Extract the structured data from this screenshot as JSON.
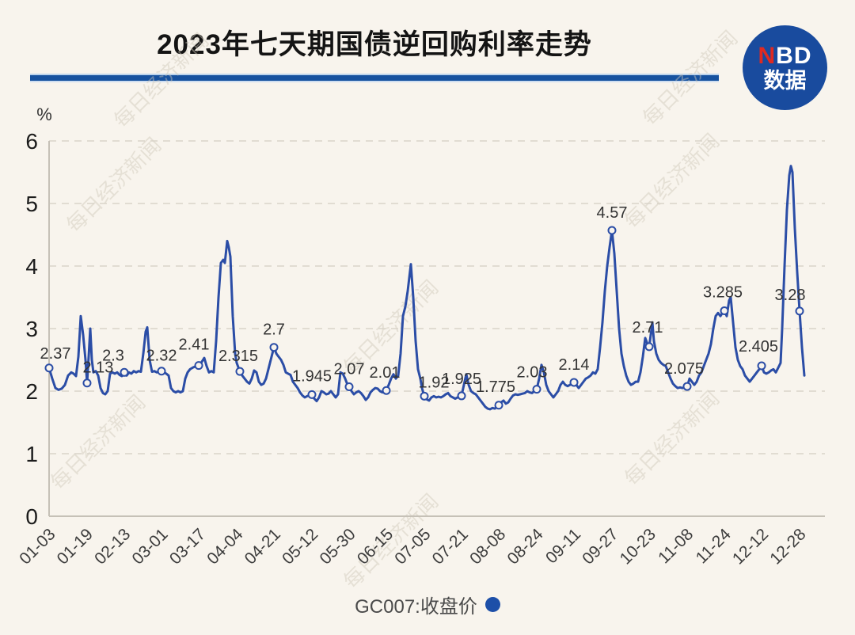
{
  "header": {
    "title": "2023年七天期国债逆回购利率走势",
    "logo": {
      "n": "N",
      "bd": "BD",
      "caption": "数据"
    }
  },
  "watermark": {
    "text": "每日经济新闻"
  },
  "legend": {
    "label": "GC007:收盘价"
  },
  "colors": {
    "background": "#f8f4ed",
    "line": "#2b4da6",
    "marker_fill": "#f8f4ed",
    "grid": "#d9d4ca",
    "axis": "#c6c1b7",
    "divider_blue": "#17529f",
    "logo_blue": "#194b9e",
    "logo_red": "#e02a21",
    "legend_dot": "#1d4fa8",
    "watermark": "#cfc8ba",
    "tick_text": "#3c3c3c",
    "label_text": "#333333"
  },
  "chart_data": {
    "type": "line",
    "title": "2023年七天期国债逆回购利率走势",
    "series_name": "GC007:收盘价",
    "xlabel": "",
    "ylabel": "%",
    "ylim": [
      0,
      6
    ],
    "yticks": [
      0,
      1,
      2,
      3,
      4,
      5,
      6
    ],
    "grid": "horizontal dashed, y=1..6",
    "legend_position": "bottom center",
    "x_axis_type": "trading days 2023, evenly spaced ticks",
    "x_tick_labels": [
      "01-03",
      "01-19",
      "02-13",
      "03-01",
      "03-17",
      "04-04",
      "04-21",
      "05-12",
      "05-30",
      "06-15",
      "07-05",
      "07-21",
      "08-08",
      "08-24",
      "09-11",
      "09-27",
      "10-23",
      "11-08",
      "11-24",
      "12-12",
      "12-28"
    ],
    "labeled_points": [
      {
        "date": "01-03",
        "x": 0.0,
        "value": 2.37,
        "label": "2.37"
      },
      {
        "date": "01-19",
        "x": 0.0506,
        "value": 2.13,
        "label": "2.13"
      },
      {
        "date": "02-13",
        "x": 0.1002,
        "value": 2.3,
        "label": "2.3"
      },
      {
        "date": "03-01",
        "x": 0.1498,
        "value": 2.32,
        "label": "2.32"
      },
      {
        "date": "03-17",
        "x": 0.1994,
        "value": 2.41,
        "label": "2.41"
      },
      {
        "date": "04-04",
        "x": 0.2542,
        "value": 2.315,
        "label": "2.315"
      },
      {
        "date": "04-21",
        "x": 0.2996,
        "value": 2.7,
        "label": "2.7"
      },
      {
        "date": "05-12",
        "x": 0.3502,
        "value": 1.945,
        "label": "1.945"
      },
      {
        "date": "05-30",
        "x": 0.3998,
        "value": 2.07,
        "label": "2.07"
      },
      {
        "date": "06-15",
        "x": 0.4494,
        "value": 2.01,
        "label": "2.01"
      },
      {
        "date": "07-05",
        "x": 0.5,
        "value": 1.92,
        "label": "1.92"
      },
      {
        "date": "07-21",
        "x": 0.5496,
        "value": 1.925,
        "label": "1.925"
      },
      {
        "date": "08-08",
        "x": 0.5992,
        "value": 1.775,
        "label": "1.775"
      },
      {
        "date": "08-24",
        "x": 0.6498,
        "value": 2.03,
        "label": "2.03"
      },
      {
        "date": "09-11",
        "x": 0.6994,
        "value": 2.14,
        "label": "2.14"
      },
      {
        "date": "09-27",
        "x": 0.75,
        "value": 4.57,
        "label": "4.57"
      },
      {
        "date": "10-23",
        "x": 0.7996,
        "value": 2.71,
        "label": "2.71"
      },
      {
        "date": "11-08",
        "x": 0.8502,
        "value": 2.075,
        "label": "2.075"
      },
      {
        "date": "11-24",
        "x": 0.8998,
        "value": 3.285,
        "label": "3.285"
      },
      {
        "date": "12-12",
        "x": 0.9494,
        "value": 2.405,
        "label": "2.405"
      },
      {
        "date": "12-28",
        "x": 1.0,
        "value": 3.28,
        "label": "3.28"
      }
    ],
    "line_points": [
      [
        0.0,
        2.37
      ],
      [
        0.0042,
        2.2
      ],
      [
        0.0084,
        2.05
      ],
      [
        0.0127,
        2.02
      ],
      [
        0.0169,
        2.04
      ],
      [
        0.0211,
        2.1
      ],
      [
        0.0253,
        2.25
      ],
      [
        0.0295,
        2.3
      ],
      [
        0.0327,
        2.28
      ],
      [
        0.0359,
        2.24
      ],
      [
        0.039,
        2.55
      ],
      [
        0.0422,
        3.2
      ],
      [
        0.0454,
        2.9
      ],
      [
        0.0485,
        2.5
      ],
      [
        0.0506,
        2.13
      ],
      [
        0.0527,
        2.55
      ],
      [
        0.0549,
        3.0
      ],
      [
        0.057,
        2.5
      ],
      [
        0.0591,
        2.3
      ],
      [
        0.0622,
        2.32
      ],
      [
        0.0654,
        2.25
      ],
      [
        0.0686,
        2.05
      ],
      [
        0.0717,
        1.97
      ],
      [
        0.0749,
        1.95
      ],
      [
        0.0781,
        2.0
      ],
      [
        0.0812,
        2.28
      ],
      [
        0.0844,
        2.3
      ],
      [
        0.0876,
        2.28
      ],
      [
        0.0907,
        2.3
      ],
      [
        0.0939,
        2.26
      ],
      [
        0.097,
        2.24
      ],
      [
        0.1002,
        2.3
      ],
      [
        0.1034,
        2.25
      ],
      [
        0.1065,
        2.3
      ],
      [
        0.1097,
        2.28
      ],
      [
        0.1129,
        2.32
      ],
      [
        0.116,
        2.3
      ],
      [
        0.1192,
        2.32
      ],
      [
        0.1224,
        2.31
      ],
      [
        0.1255,
        2.6
      ],
      [
        0.1287,
        2.95
      ],
      [
        0.1308,
        3.02
      ],
      [
        0.134,
        2.5
      ],
      [
        0.1371,
        2.31
      ],
      [
        0.1403,
        2.32
      ],
      [
        0.1435,
        2.3
      ],
      [
        0.1466,
        2.31
      ],
      [
        0.1498,
        2.32
      ],
      [
        0.153,
        2.3
      ],
      [
        0.1561,
        2.28
      ],
      [
        0.1593,
        2.25
      ],
      [
        0.1624,
        2.05
      ],
      [
        0.1656,
        2.0
      ],
      [
        0.1688,
        1.98
      ],
      [
        0.1719,
        2.0
      ],
      [
        0.1751,
        1.98
      ],
      [
        0.1783,
        2.0
      ],
      [
        0.1814,
        2.2
      ],
      [
        0.1846,
        2.3
      ],
      [
        0.1878,
        2.35
      ],
      [
        0.192,
        2.38
      ],
      [
        0.1962,
        2.4
      ],
      [
        0.1994,
        2.41
      ],
      [
        0.2025,
        2.45
      ],
      [
        0.2068,
        2.53
      ],
      [
        0.2099,
        2.4
      ],
      [
        0.2131,
        2.3
      ],
      [
        0.2162,
        2.32
      ],
      [
        0.2194,
        2.3
      ],
      [
        0.2226,
        2.8
      ],
      [
        0.2257,
        3.5
      ],
      [
        0.2289,
        4.05
      ],
      [
        0.2321,
        4.1
      ],
      [
        0.2342,
        4.05
      ],
      [
        0.2373,
        4.4
      ],
      [
        0.2395,
        4.3
      ],
      [
        0.2416,
        4.15
      ],
      [
        0.2447,
        3.2
      ],
      [
        0.2479,
        2.6
      ],
      [
        0.25,
        2.45
      ],
      [
        0.2542,
        2.315
      ],
      [
        0.2574,
        2.25
      ],
      [
        0.2606,
        2.2
      ],
      [
        0.2637,
        2.15
      ],
      [
        0.2669,
        2.12
      ],
      [
        0.27,
        2.2
      ],
      [
        0.2732,
        2.33
      ],
      [
        0.2764,
        2.3
      ],
      [
        0.2795,
        2.15
      ],
      [
        0.2827,
        2.1
      ],
      [
        0.2859,
        2.12
      ],
      [
        0.289,
        2.2
      ],
      [
        0.2922,
        2.35
      ],
      [
        0.2954,
        2.5
      ],
      [
        0.2996,
        2.7
      ],
      [
        0.3028,
        2.6
      ],
      [
        0.3059,
        2.55
      ],
      [
        0.3091,
        2.5
      ],
      [
        0.3122,
        2.42
      ],
      [
        0.3154,
        2.3
      ],
      [
        0.3186,
        2.28
      ],
      [
        0.3217,
        2.26
      ],
      [
        0.3249,
        2.15
      ],
      [
        0.3281,
        2.1
      ],
      [
        0.3312,
        2.05
      ],
      [
        0.3344,
        1.98
      ],
      [
        0.3376,
        1.93
      ],
      [
        0.3407,
        1.9
      ],
      [
        0.3439,
        1.92
      ],
      [
        0.3471,
        1.93
      ],
      [
        0.3502,
        1.945
      ],
      [
        0.3534,
        1.88
      ],
      [
        0.3565,
        1.84
      ],
      [
        0.3597,
        1.9
      ],
      [
        0.3629,
        2.0
      ],
      [
        0.366,
        1.98
      ],
      [
        0.3692,
        1.95
      ],
      [
        0.3724,
        1.96
      ],
      [
        0.3755,
        2.0
      ],
      [
        0.3787,
        1.95
      ],
      [
        0.3819,
        1.9
      ],
      [
        0.385,
        1.95
      ],
      [
        0.3882,
        2.3
      ],
      [
        0.3913,
        2.28
      ],
      [
        0.3945,
        2.2
      ],
      [
        0.3977,
        2.1
      ],
      [
        0.3998,
        2.07
      ],
      [
        0.403,
        2.0
      ],
      [
        0.4061,
        1.95
      ],
      [
        0.4093,
        1.98
      ],
      [
        0.4125,
        2.0
      ],
      [
        0.4156,
        1.97
      ],
      [
        0.4188,
        1.92
      ],
      [
        0.4219,
        1.86
      ],
      [
        0.4251,
        1.9
      ],
      [
        0.4283,
        1.98
      ],
      [
        0.4314,
        2.02
      ],
      [
        0.4346,
        2.05
      ],
      [
        0.4378,
        2.04
      ],
      [
        0.4409,
        2.0
      ],
      [
        0.4441,
        1.98
      ],
      [
        0.4473,
        2.0
      ],
      [
        0.4494,
        2.01
      ],
      [
        0.4525,
        2.1
      ],
      [
        0.4557,
        2.2
      ],
      [
        0.4589,
        2.27
      ],
      [
        0.462,
        2.2
      ],
      [
        0.4652,
        2.25
      ],
      [
        0.4684,
        2.6
      ],
      [
        0.4715,
        3.2
      ],
      [
        0.4747,
        3.35
      ],
      [
        0.4778,
        3.6
      ],
      [
        0.4821,
        4.03
      ],
      [
        0.4852,
        3.5
      ],
      [
        0.4884,
        2.8
      ],
      [
        0.4916,
        2.35
      ],
      [
        0.4947,
        2.2
      ],
      [
        0.4968,
        2.05
      ],
      [
        0.5,
        1.92
      ],
      [
        0.5032,
        1.87
      ],
      [
        0.5063,
        1.85
      ],
      [
        0.5095,
        1.9
      ],
      [
        0.5127,
        1.92
      ],
      [
        0.5158,
        1.9
      ],
      [
        0.519,
        1.91
      ],
      [
        0.5221,
        1.9
      ],
      [
        0.5253,
        1.92
      ],
      [
        0.5285,
        1.95
      ],
      [
        0.5316,
        1.97
      ],
      [
        0.5348,
        1.92
      ],
      [
        0.538,
        1.9
      ],
      [
        0.5411,
        1.88
      ],
      [
        0.5443,
        1.9
      ],
      [
        0.5475,
        1.91
      ],
      [
        0.5496,
        1.925
      ],
      [
        0.5527,
        2.1
      ],
      [
        0.5559,
        2.27
      ],
      [
        0.5591,
        2.1
      ],
      [
        0.5622,
        2.0
      ],
      [
        0.5654,
        1.97
      ],
      [
        0.5686,
        1.95
      ],
      [
        0.5717,
        1.9
      ],
      [
        0.5749,
        1.85
      ],
      [
        0.5781,
        1.8
      ],
      [
        0.5812,
        1.75
      ],
      [
        0.5844,
        1.72
      ],
      [
        0.5875,
        1.71
      ],
      [
        0.5907,
        1.73
      ],
      [
        0.5939,
        1.72
      ],
      [
        0.597,
        1.75
      ],
      [
        0.5992,
        1.775
      ],
      [
        0.6023,
        1.82
      ],
      [
        0.6055,
        1.85
      ],
      [
        0.6087,
        1.8
      ],
      [
        0.6118,
        1.82
      ],
      [
        0.615,
        1.88
      ],
      [
        0.6181,
        1.93
      ],
      [
        0.6213,
        1.95
      ],
      [
        0.6245,
        1.94
      ],
      [
        0.6276,
        1.95
      ],
      [
        0.6308,
        1.96
      ],
      [
        0.634,
        1.97
      ],
      [
        0.6371,
        2.0
      ],
      [
        0.6403,
        1.98
      ],
      [
        0.6435,
        1.97
      ],
      [
        0.6466,
        2.0
      ],
      [
        0.6498,
        2.03
      ],
      [
        0.653,
        2.2
      ],
      [
        0.6561,
        2.42
      ],
      [
        0.6593,
        2.3
      ],
      [
        0.6624,
        2.1
      ],
      [
        0.6656,
        2.0
      ],
      [
        0.6688,
        1.95
      ],
      [
        0.6719,
        1.9
      ],
      [
        0.6751,
        1.95
      ],
      [
        0.6783,
        2.0
      ],
      [
        0.6814,
        2.1
      ],
      [
        0.6846,
        2.15
      ],
      [
        0.6878,
        2.1
      ],
      [
        0.6909,
        2.08
      ],
      [
        0.6941,
        2.1
      ],
      [
        0.6973,
        2.12
      ],
      [
        0.6994,
        2.14
      ],
      [
        0.7025,
        2.1
      ],
      [
        0.7057,
        2.05
      ],
      [
        0.7089,
        2.1
      ],
      [
        0.712,
        2.15
      ],
      [
        0.7152,
        2.2
      ],
      [
        0.7184,
        2.22
      ],
      [
        0.7215,
        2.25
      ],
      [
        0.7247,
        2.3
      ],
      [
        0.7278,
        2.28
      ],
      [
        0.731,
        2.35
      ],
      [
        0.7342,
        2.7
      ],
      [
        0.7373,
        3.1
      ],
      [
        0.7405,
        3.6
      ],
      [
        0.7437,
        4.0
      ],
      [
        0.7468,
        4.3
      ],
      [
        0.75,
        4.57
      ],
      [
        0.7532,
        4.2
      ],
      [
        0.7563,
        3.6
      ],
      [
        0.7595,
        3.0
      ],
      [
        0.7627,
        2.6
      ],
      [
        0.7658,
        2.4
      ],
      [
        0.769,
        2.25
      ],
      [
        0.7722,
        2.15
      ],
      [
        0.7753,
        2.1
      ],
      [
        0.7785,
        2.12
      ],
      [
        0.7816,
        2.15
      ],
      [
        0.7848,
        2.15
      ],
      [
        0.788,
        2.3
      ],
      [
        0.7911,
        2.55
      ],
      [
        0.7943,
        2.85
      ],
      [
        0.7975,
        2.75
      ],
      [
        0.7996,
        2.71
      ],
      [
        0.8017,
        2.9
      ],
      [
        0.8038,
        3.1
      ],
      [
        0.8059,
        2.8
      ],
      [
        0.8091,
        2.6
      ],
      [
        0.8122,
        2.5
      ],
      [
        0.8154,
        2.45
      ],
      [
        0.8186,
        2.42
      ],
      [
        0.8217,
        2.4
      ],
      [
        0.8249,
        2.3
      ],
      [
        0.8281,
        2.2
      ],
      [
        0.8312,
        2.12
      ],
      [
        0.8344,
        2.08
      ],
      [
        0.8376,
        2.05
      ],
      [
        0.8407,
        2.06
      ],
      [
        0.8439,
        2.05
      ],
      [
        0.8471,
        2.06
      ],
      [
        0.8502,
        2.075
      ],
      [
        0.8534,
        2.2
      ],
      [
        0.8565,
        2.15
      ],
      [
        0.8597,
        2.1
      ],
      [
        0.8629,
        2.15
      ],
      [
        0.866,
        2.25
      ],
      [
        0.8692,
        2.3
      ],
      [
        0.8724,
        2.4
      ],
      [
        0.8755,
        2.5
      ],
      [
        0.8787,
        2.6
      ],
      [
        0.8819,
        2.75
      ],
      [
        0.885,
        3.0
      ],
      [
        0.8882,
        3.2
      ],
      [
        0.8914,
        3.25
      ],
      [
        0.8945,
        3.2
      ],
      [
        0.8977,
        3.26
      ],
      [
        0.8998,
        3.285
      ],
      [
        0.903,
        3.2
      ],
      [
        0.9061,
        3.45
      ],
      [
        0.9082,
        3.5
      ],
      [
        0.9114,
        3.1
      ],
      [
        0.9146,
        2.7
      ],
      [
        0.9177,
        2.5
      ],
      [
        0.9209,
        2.4
      ],
      [
        0.9241,
        2.35
      ],
      [
        0.9272,
        2.25
      ],
      [
        0.9304,
        2.2
      ],
      [
        0.9335,
        2.15
      ],
      [
        0.9367,
        2.2
      ],
      [
        0.9399,
        2.25
      ],
      [
        0.943,
        2.3
      ],
      [
        0.9462,
        2.35
      ],
      [
        0.9494,
        2.405
      ],
      [
        0.9525,
        2.3
      ],
      [
        0.9557,
        2.28
      ],
      [
        0.9589,
        2.3
      ],
      [
        0.962,
        2.33
      ],
      [
        0.9652,
        2.35
      ],
      [
        0.9684,
        2.3
      ],
      [
        0.9705,
        2.35
      ],
      [
        0.9726,
        2.4
      ],
      [
        0.9747,
        2.45
      ],
      [
        0.9768,
        3.0
      ],
      [
        0.98,
        4.0
      ],
      [
        0.9831,
        4.9
      ],
      [
        0.9863,
        5.45
      ],
      [
        0.9884,
        5.6
      ],
      [
        0.9905,
        5.5
      ],
      [
        0.9937,
        4.6
      ],
      [
        0.9968,
        3.9
      ],
      [
        1.0,
        3.28
      ],
      [
        1.0032,
        2.7
      ],
      [
        1.0063,
        2.25
      ]
    ]
  }
}
